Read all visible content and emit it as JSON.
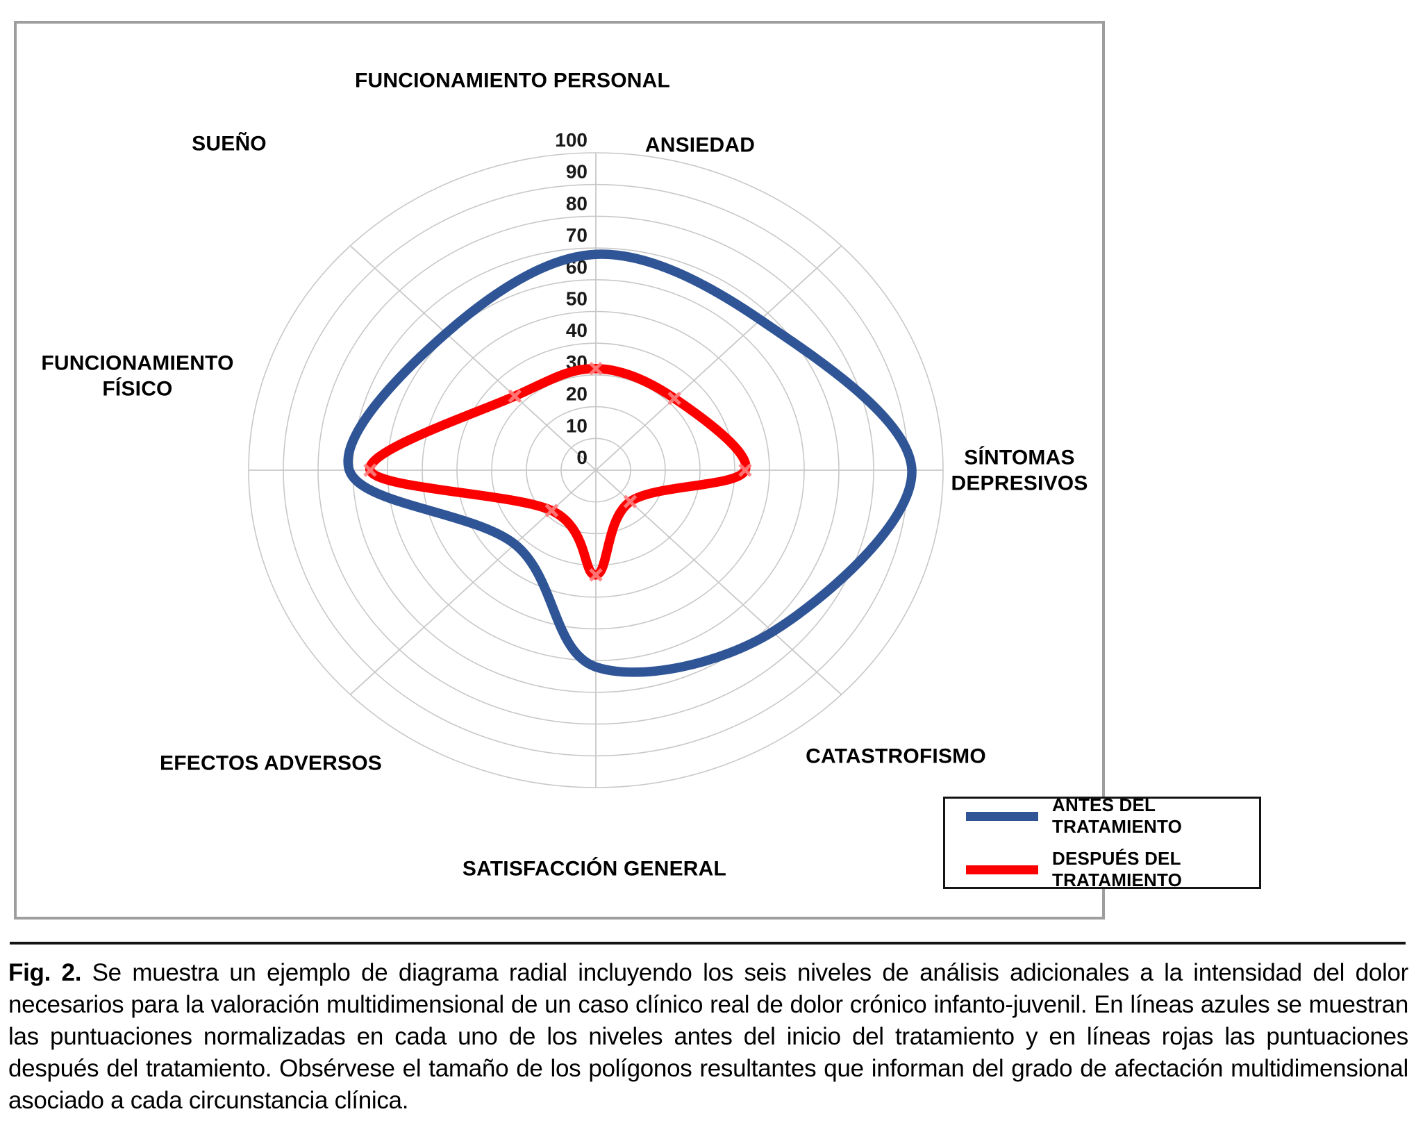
{
  "figure": {
    "caption_label": "Fig. 2.",
    "caption_text": " Se muestra un ejemplo de diagrama radial incluyendo los seis niveles de análisis adicionales a la intensidad del dolor necesarios para la valoración multidimensional de un caso clínico real de dolor crónico infanto-juvenil. En líneas azules se muestran las puntuaciones normalizadas en cada uno de los niveles antes del inicio del tratamiento y en líneas rojas las puntuaciones después del tratamiento. Obsérvese el tamaño de los polígonos resultantes que informan del grado de afectación multidimensional asociado a cada circunstancia clínica."
  },
  "chart_data": {
    "type": "radar",
    "smooth": true,
    "grid": true,
    "rmax": 100,
    "r_step": 10,
    "radial_ticks": [
      0,
      10,
      20,
      30,
      40,
      50,
      60,
      70,
      80,
      90,
      100
    ],
    "categories": [
      "FUNCIONAMIENTO PERSONAL",
      "ANSIEDAD",
      "SÍNTOMAS DEPRESIVOS",
      "CATASTROFISMO",
      "SATISFACCIÓN GENERAL",
      "EFECTOS ADVERSOS",
      "FUNCIONAMIENTO FÍSICO",
      "SUEÑO"
    ],
    "series": [
      {
        "name": "ANTES DEL TRATAMIENTO",
        "color": "#2F5597",
        "marker": "none",
        "values": [
          68,
          67,
          91,
          72,
          62,
          33,
          71,
          61
        ]
      },
      {
        "name": "DESPUÉS DEL TRATAMIENTO",
        "color": "#FC0000",
        "marker": "x",
        "marker_color": "#FF8080",
        "values": [
          32,
          32,
          43,
          14,
          33,
          18,
          65,
          33
        ]
      }
    ],
    "grid_color": "#C8C8C8",
    "legend_position": "bottom-right"
  }
}
